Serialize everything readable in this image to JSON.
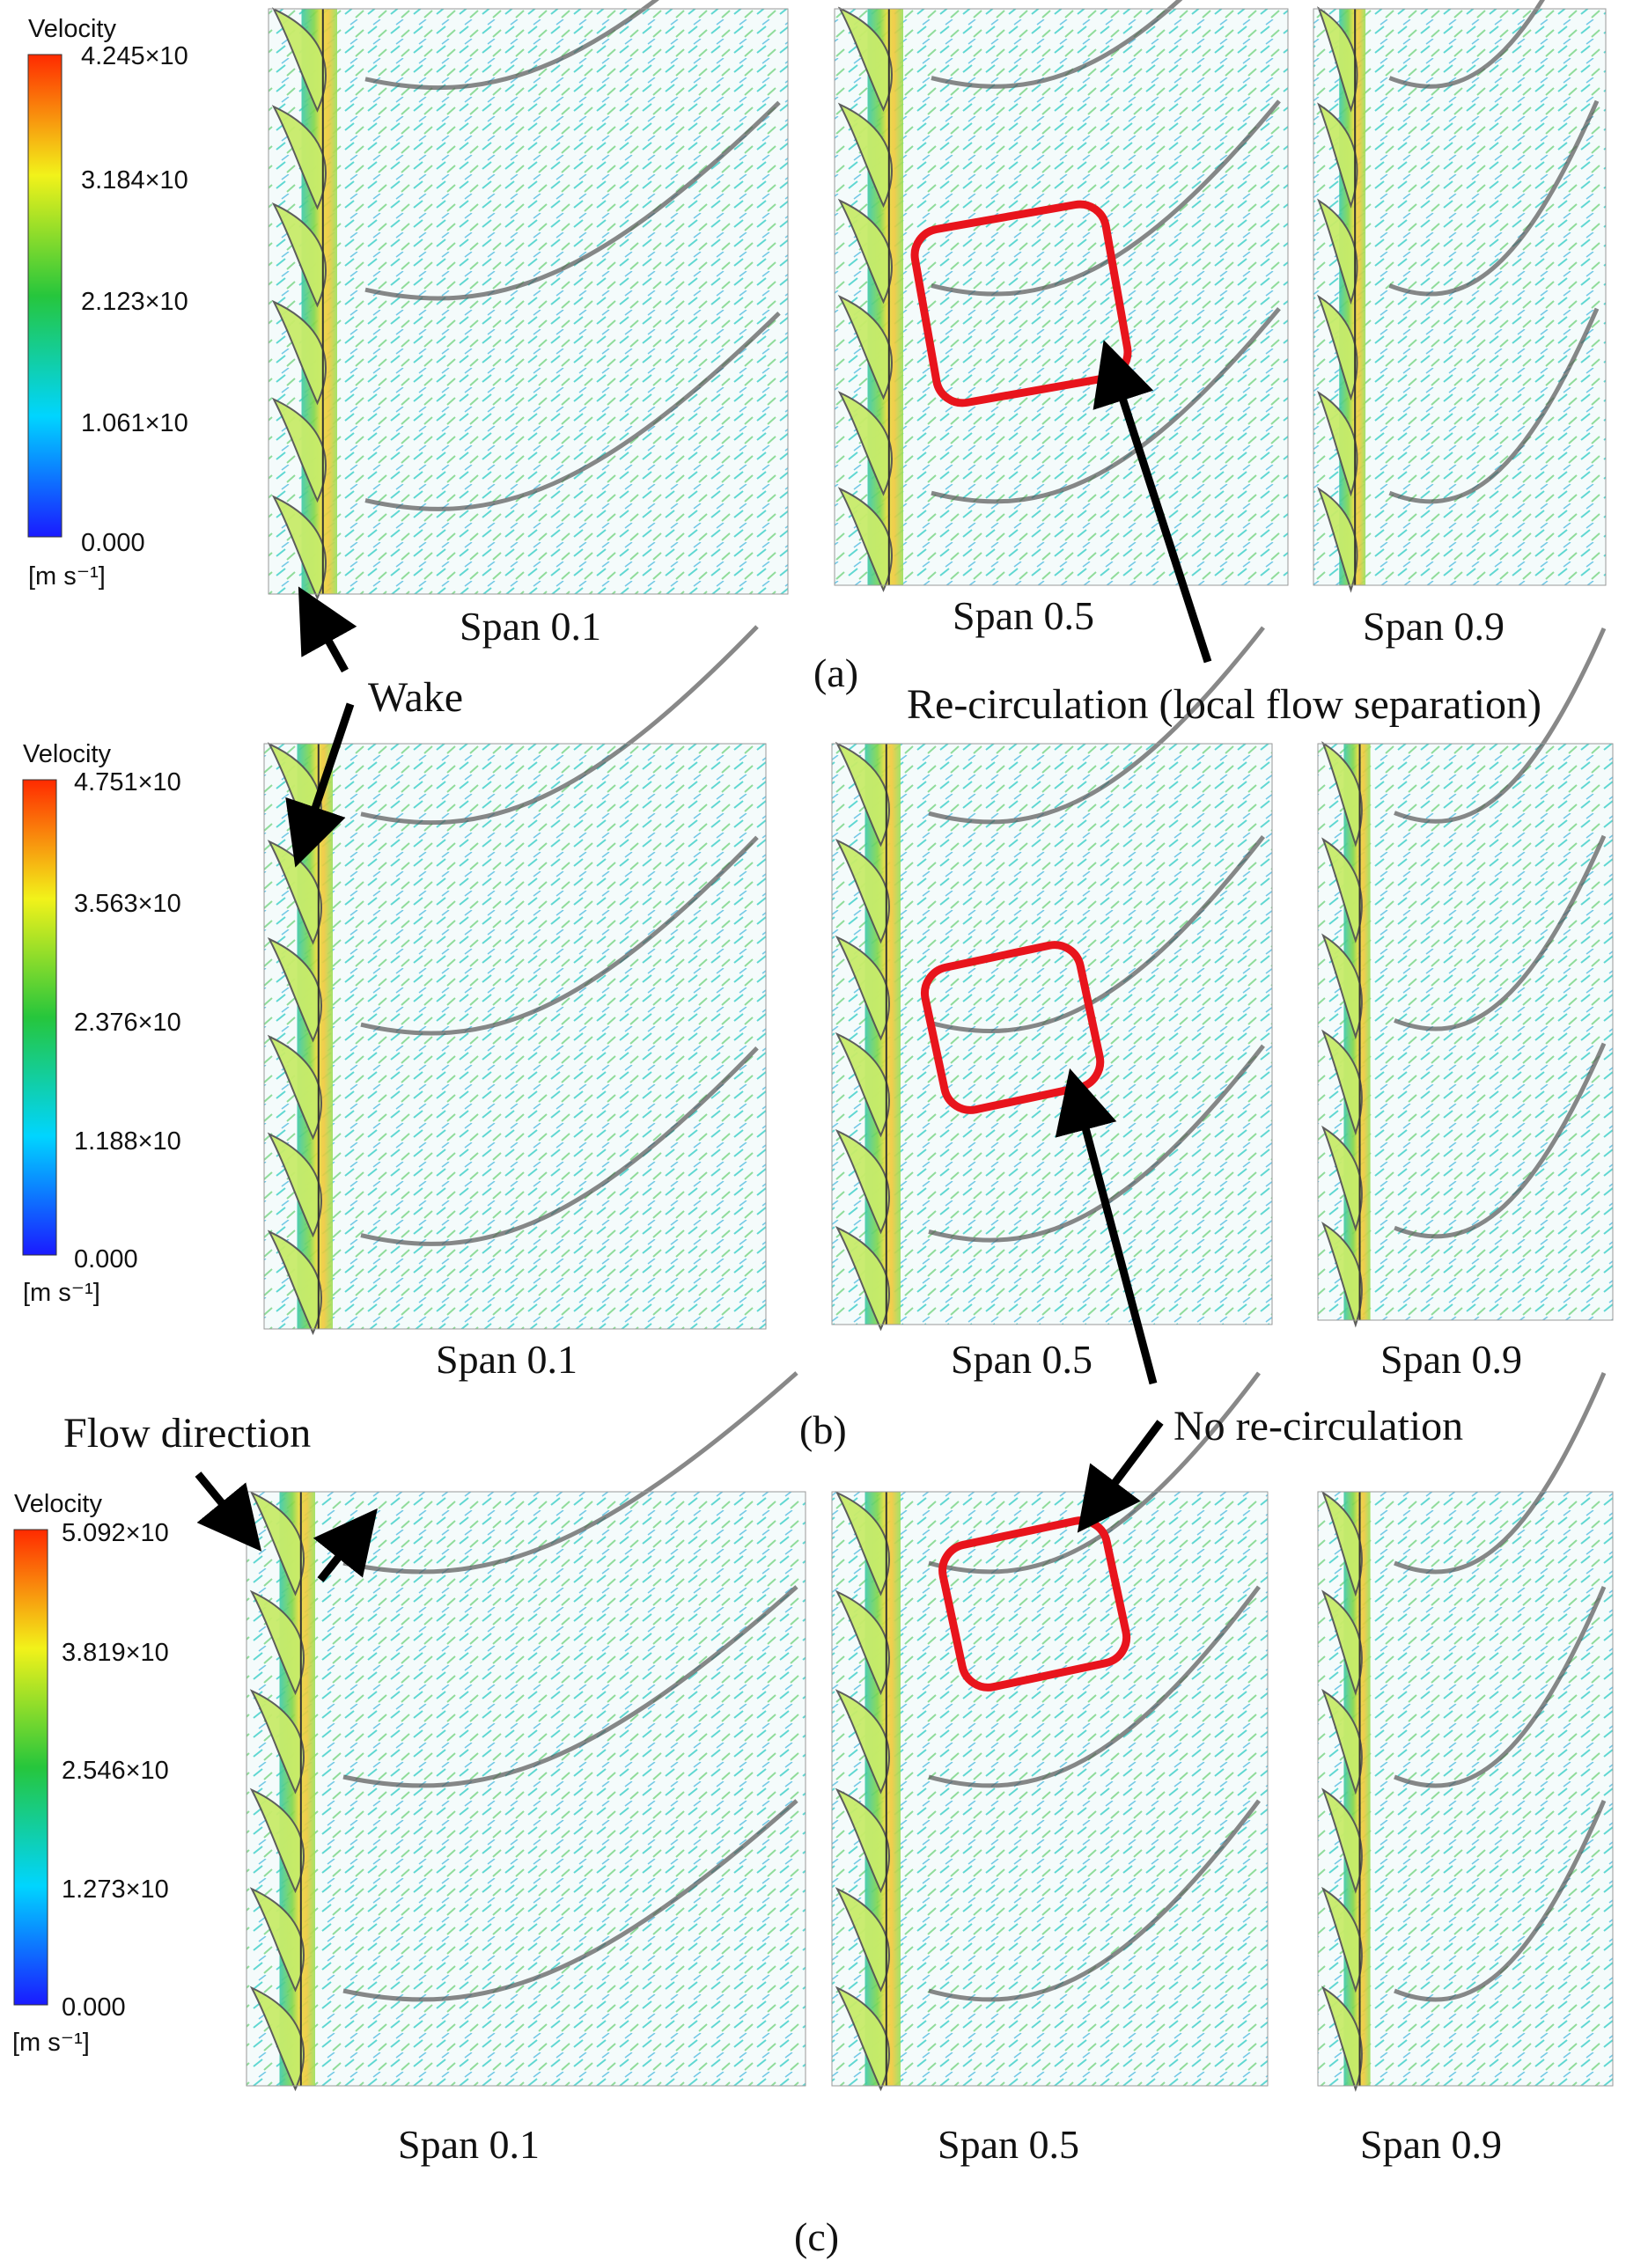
{
  "figure": {
    "rows": [
      {
        "id": "a",
        "sublabel": "(a)",
        "colorbar": {
          "title": "Velocity",
          "ticks": [
            "4.245×10",
            "3.184×10",
            "2.123×10",
            "1.061×10",
            "0.000"
          ],
          "unit": "[m s⁻¹]"
        },
        "panels": [
          {
            "label": "Span 0.1",
            "recirculation_box": false
          },
          {
            "label": "Span 0.5",
            "recirculation_box": true
          },
          {
            "label": "Span 0.9",
            "recirculation_box": false
          }
        ]
      },
      {
        "id": "b",
        "sublabel": "(b)",
        "colorbar": {
          "title": "Velocity",
          "ticks": [
            "4.751×10",
            "3.563×10",
            "2.376×10",
            "1.188×10",
            "0.000"
          ],
          "unit": "[m s⁻¹]"
        },
        "panels": [
          {
            "label": "Span 0.1",
            "recirculation_box": false
          },
          {
            "label": "Span 0.5",
            "recirculation_box": true
          },
          {
            "label": "Span 0.9",
            "recirculation_box": false
          }
        ]
      },
      {
        "id": "c",
        "sublabel": "(c)",
        "colorbar": {
          "title": "Velocity",
          "ticks": [
            "5.092×10",
            "3.819×10",
            "2.546×10",
            "1.273×10",
            "0.000"
          ],
          "unit": "[m s⁻¹]"
        },
        "panels": [
          {
            "label": "Span 0.1",
            "recirculation_box": false
          },
          {
            "label": "Span 0.5",
            "recirculation_box": true
          },
          {
            "label": "Span 0.9",
            "recirculation_box": false
          }
        ]
      }
    ],
    "annotations": {
      "wake": "Wake",
      "recirculation": "Re-circulation (local flow separation)",
      "no_recirculation": "No re-circulation",
      "flow_direction": "Flow direction"
    },
    "colors": {
      "box": "#e8141c",
      "arrow": "#000000",
      "blade_outline": "#555555",
      "colormap": [
        "#1a1aff",
        "#00d5ff",
        "#26c63c",
        "#f2f21a",
        "#ff2a00"
      ]
    }
  }
}
